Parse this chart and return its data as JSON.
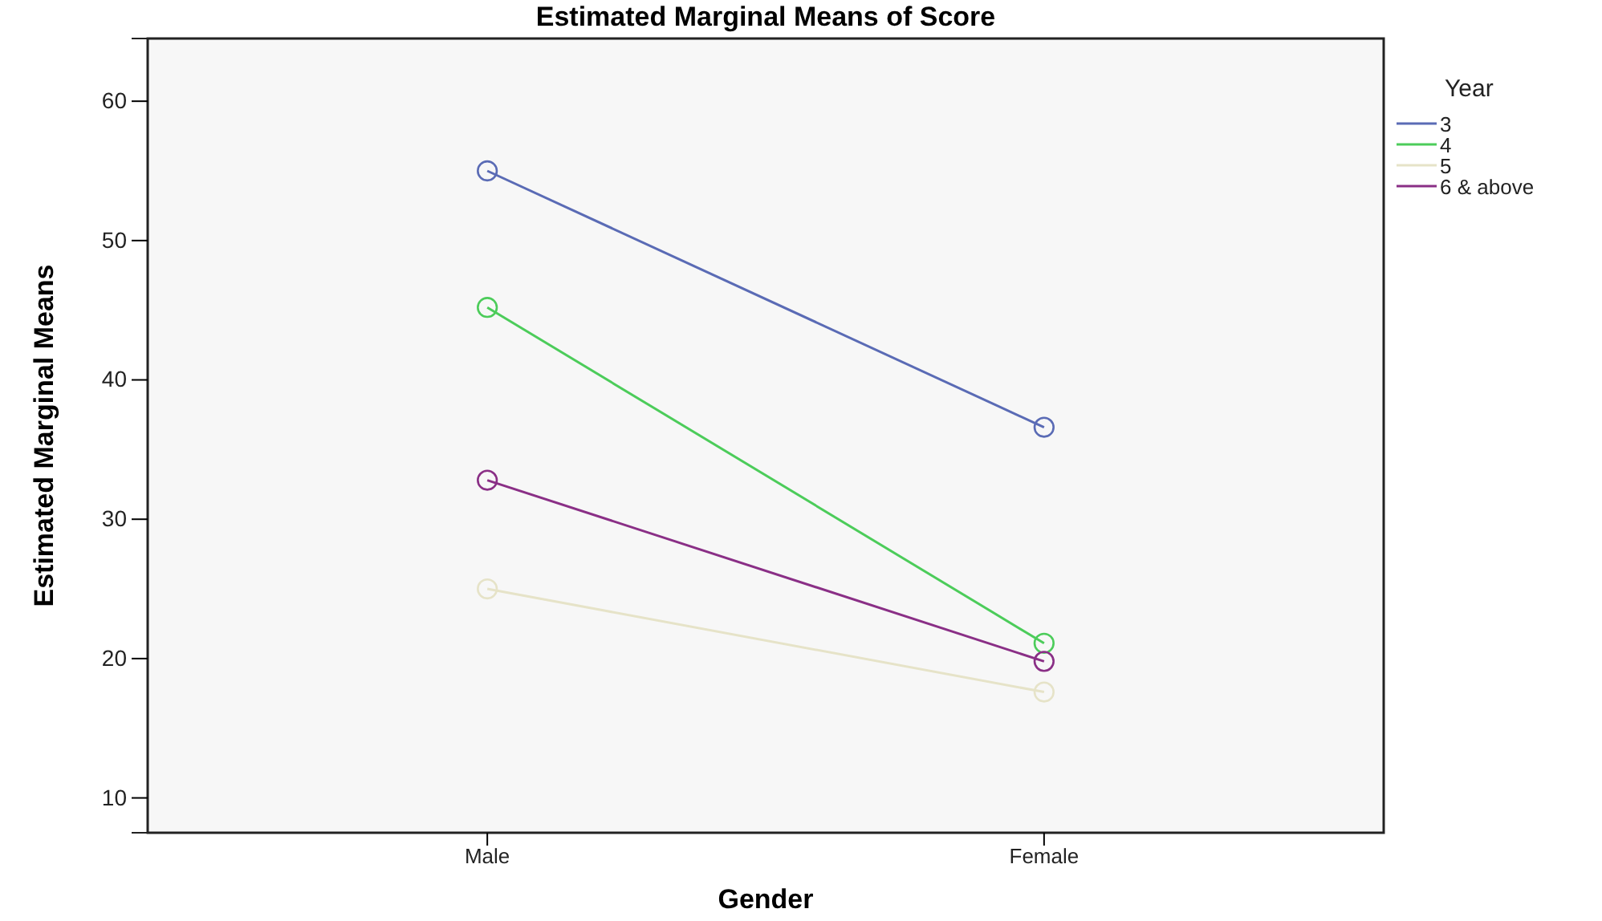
{
  "chart_data": {
    "type": "line",
    "title": "Estimated Marginal Means of Score",
    "xlabel": "Gender",
    "ylabel": "Estimated Marginal Means",
    "legend_title": "Year",
    "categories": [
      "Male",
      "Female"
    ],
    "series": [
      {
        "name": "3",
        "color": "#5a6bb5",
        "values": [
          55.0,
          36.6
        ]
      },
      {
        "name": "4",
        "color": "#4ccc5a",
        "values": [
          45.2,
          21.1
        ]
      },
      {
        "name": "5",
        "color": "#e6e3c8",
        "values": [
          25.0,
          17.6
        ]
      },
      {
        "name": "6 & above",
        "color": "#8a2f86",
        "values": [
          32.8,
          19.8
        ]
      }
    ],
    "ylim": [
      7.5,
      64.5
    ],
    "yticks": [
      10,
      20,
      30,
      40,
      50,
      60
    ],
    "grid": false,
    "legend": "top right",
    "marker": "circle",
    "line_style": "solid"
  }
}
